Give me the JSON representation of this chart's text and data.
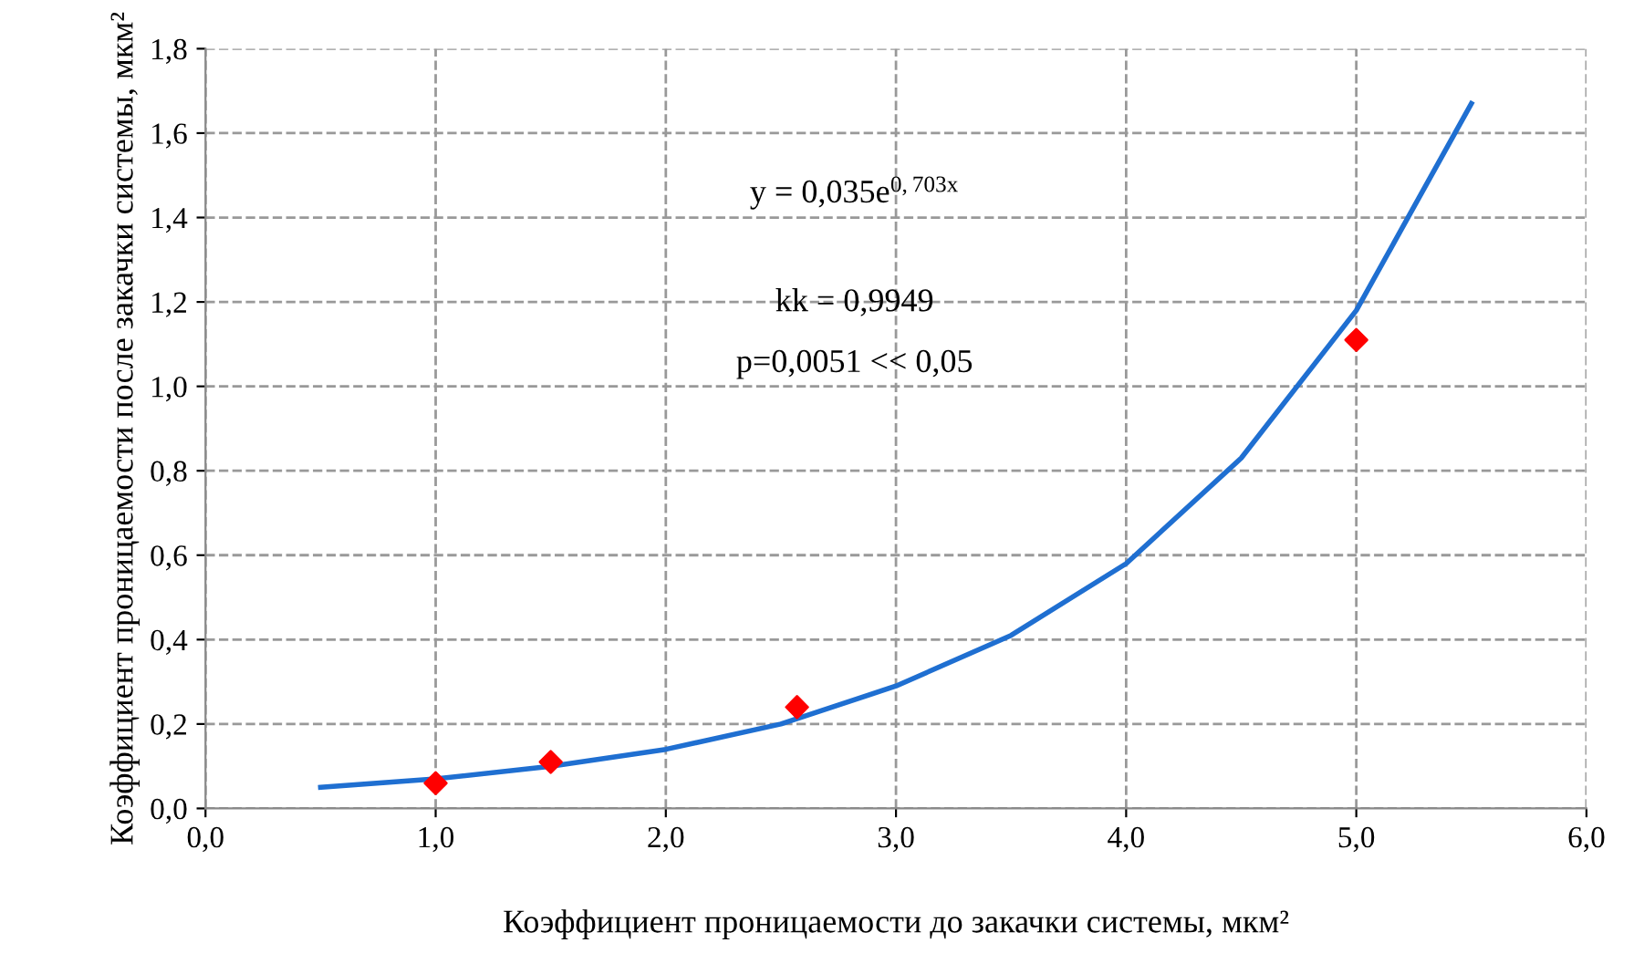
{
  "chart_data": {
    "type": "scatter",
    "xlabel": "Коэффициент проницаемости до закачки системы, мкм²",
    "ylabel": "Коэффициент проницаемости после закачки системы, мкм²",
    "series": [
      {
        "color": "#ff0000",
        "marker": "diamond",
        "x": [
          1.0,
          1.5,
          2.57,
          5.0
        ],
        "values": [
          0.06,
          0.11,
          0.24,
          1.11
        ]
      },
      {
        "type": "line",
        "color": "#1f6fd1",
        "marker": "none",
        "x": [
          0.5,
          1.0,
          1.5,
          2.0,
          2.5,
          3.0,
          3.5,
          4.0,
          4.5,
          5.0,
          5.5
        ],
        "values": [
          0.05,
          0.07,
          0.1,
          0.14,
          0.2,
          0.29,
          0.41,
          0.58,
          0.83,
          1.18,
          1.67
        ]
      }
    ],
    "annotations": [
      "y = 0,035e$^{0,703x}$",
      "kk = 0,9949",
      "p=0,0051 << 0,05"
    ],
    "xlim": [
      0,
      6
    ],
    "ylim": [
      0,
      1.8
    ],
    "xticks": [
      {
        "value": 0,
        "label": "0,0"
      },
      {
        "value": 1,
        "label": "1,0"
      },
      {
        "value": 2,
        "label": "2,0"
      },
      {
        "value": 3,
        "label": "3,0"
      },
      {
        "value": 4,
        "label": "4,0"
      },
      {
        "value": 5,
        "label": "5,0"
      },
      {
        "value": 6,
        "label": "6,0"
      }
    ],
    "yticks": [
      {
        "value": 0,
        "label": "0,0"
      },
      {
        "value": 0.2,
        "label": "0,2"
      },
      {
        "value": 0.4,
        "label": "0,4"
      },
      {
        "value": 0.6,
        "label": "0,6"
      },
      {
        "value": 0.8,
        "label": "0,8"
      },
      {
        "value": 1.0,
        "label": "1,0"
      },
      {
        "value": 1.2,
        "label": "1,2"
      },
      {
        "value": 1.4,
        "label": "1,4"
      },
      {
        "value": 1.6,
        "label": "1,6"
      },
      {
        "value": 1.8,
        "label": "1,8"
      }
    ],
    "grid": true,
    "legend": false
  }
}
